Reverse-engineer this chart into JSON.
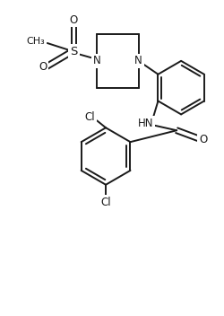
{
  "bg_color": "#ffffff",
  "line_color": "#1a1a1a",
  "line_width": 1.4,
  "font_size": 8.5,
  "figsize": [
    2.5,
    3.52
  ],
  "dpi": 100,
  "xlim": [
    0,
    250
  ],
  "ylim": [
    0,
    352
  ]
}
